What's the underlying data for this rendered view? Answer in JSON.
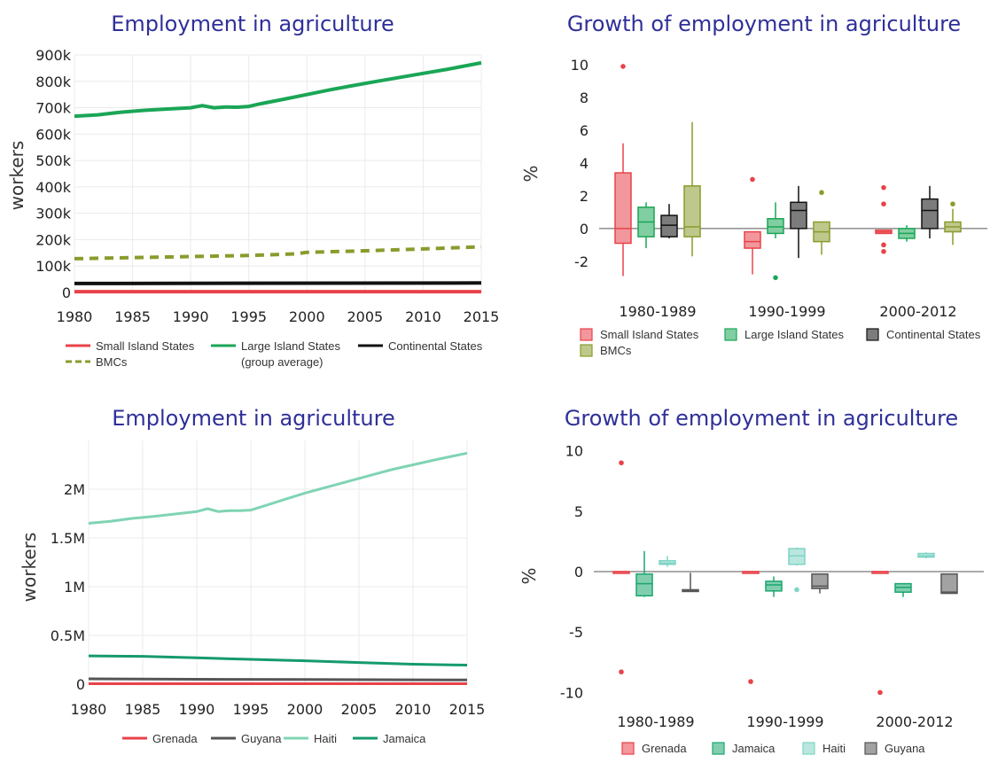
{
  "chart_data": [
    {
      "type": "line",
      "title": "Employment in agriculture",
      "ylabel": "workers",
      "xlim": [
        1980,
        2015
      ],
      "ylim": [
        0,
        900000
      ],
      "x_ticks": [
        "1980",
        "1985",
        "1990",
        "1995",
        "2000",
        "2005",
        "2010",
        "2015"
      ],
      "y_ticks": [
        "0",
        "100k",
        "200k",
        "300k",
        "400k",
        "500k",
        "600k",
        "700k",
        "800k",
        "900k"
      ],
      "grid": true,
      "legend_position": "bottom",
      "series": [
        {
          "name": "Small Island States",
          "color": "#e8424a",
          "dash": "solid",
          "x": [
            1980,
            2015
          ],
          "y": [
            3000,
            3000
          ]
        },
        {
          "name": "Large Island States\n(group average)",
          "color": "#1aa656",
          "dash": "solid",
          "x": [
            1980,
            1982,
            1984,
            1986,
            1988,
            1990,
            1991,
            1992,
            1993,
            1994,
            1995,
            1996,
            1998,
            2000,
            2002,
            2004,
            2006,
            2008,
            2010,
            2012,
            2015
          ],
          "y": [
            668000,
            673000,
            683000,
            690000,
            695000,
            700000,
            708000,
            700000,
            703000,
            702000,
            705000,
            715000,
            732000,
            750000,
            768000,
            784000,
            800000,
            815000,
            830000,
            845000,
            870000
          ]
        },
        {
          "name": "Continental States",
          "color": "#111111",
          "dash": "solid",
          "x": [
            1980,
            2015
          ],
          "y": [
            34000,
            36000
          ]
        },
        {
          "name": "BMCs",
          "color": "#8a9b2c",
          "dash": "dashed",
          "x": [
            1980,
            1985,
            1990,
            1995,
            1999,
            2000,
            2005,
            2010,
            2015
          ],
          "y": [
            128000,
            132000,
            136000,
            140000,
            146000,
            152000,
            158000,
            165000,
            173000
          ]
        }
      ]
    },
    {
      "type": "box",
      "title": "Growth of employment in agriculture",
      "ylabel": "%",
      "ylim": [
        -3.2,
        10.6
      ],
      "y_ticks": [
        "-2",
        "0",
        "2",
        "4",
        "6",
        "8",
        "10"
      ],
      "categories": [
        "1980-1989",
        "1990-1999",
        "2000-2012"
      ],
      "legend_position": "bottom",
      "series": [
        {
          "name": "Small Island States",
          "color": "#e8424a",
          "boxes": [
            {
              "min": -2.9,
              "q1": -0.9,
              "median": 0,
              "q3": 3.4,
              "max": 5.2,
              "outliers": [
                9.9
              ]
            },
            {
              "min": -2.8,
              "q1": -1.2,
              "median": -0.8,
              "q3": -0.2,
              "max": -0.2,
              "outliers": [
                3.0
              ]
            },
            {
              "min": -0.3,
              "q1": -0.3,
              "median": -0.2,
              "q3": -0.1,
              "max": -0.1,
              "outliers": [
                2.5,
                1.5,
                -1.0,
                -1.4
              ]
            }
          ]
        },
        {
          "name": "Large Island States",
          "color": "#1aa656",
          "boxes": [
            {
              "min": -1.2,
              "q1": -0.5,
              "median": 0.4,
              "q3": 1.3,
              "max": 1.6,
              "outliers": []
            },
            {
              "min": -0.6,
              "q1": -0.3,
              "median": 0.1,
              "q3": 0.6,
              "max": 1.6,
              "outliers": [
                -3.0
              ]
            },
            {
              "min": -0.8,
              "q1": -0.6,
              "median": -0.3,
              "q3": 0.0,
              "max": 0.2,
              "outliers": []
            }
          ]
        },
        {
          "name": "Continental States",
          "color": "#111111",
          "boxes": [
            {
              "min": -0.6,
              "q1": -0.5,
              "median": 0.2,
              "q3": 0.8,
              "max": 1.5,
              "outliers": []
            },
            {
              "min": -1.8,
              "q1": 0.0,
              "median": 1.1,
              "q3": 1.6,
              "max": 2.6,
              "outliers": []
            },
            {
              "min": -0.6,
              "q1": 0.0,
              "median": 1.1,
              "q3": 1.8,
              "max": 2.6,
              "outliers": []
            }
          ]
        },
        {
          "name": "BMCs",
          "color": "#8a9b2c",
          "boxes": [
            {
              "min": -1.7,
              "q1": -0.5,
              "median": 0.1,
              "q3": 2.6,
              "max": 6.5,
              "outliers": []
            },
            {
              "min": -1.6,
              "q1": -0.8,
              "median": -0.2,
              "q3": 0.4,
              "max": 0.4,
              "outliers": [
                2.2
              ]
            },
            {
              "min": -1.0,
              "q1": -0.2,
              "median": 0.1,
              "q3": 0.4,
              "max": 1.2,
              "outliers": [
                1.5
              ]
            }
          ]
        }
      ]
    },
    {
      "type": "line",
      "title": "Employment in agriculture",
      "ylabel": "workers",
      "xlim": [
        1980,
        2015
      ],
      "ylim": [
        0,
        2500000
      ],
      "x_ticks": [
        "1980",
        "1985",
        "1990",
        "1995",
        "2000",
        "2005",
        "2010",
        "2015"
      ],
      "y_ticks": [
        "0",
        "0.5M",
        "1M",
        "1.5M",
        "2M"
      ],
      "grid": true,
      "legend_position": "bottom",
      "series": [
        {
          "name": "Grenada",
          "color": "#e8424a",
          "dash": "solid",
          "x": [
            1980,
            2015
          ],
          "y": [
            5000,
            5000
          ]
        },
        {
          "name": "Guyana",
          "color": "#555555",
          "dash": "solid",
          "x": [
            1980,
            1990,
            2000,
            2015
          ],
          "y": [
            55000,
            50000,
            47000,
            43000
          ]
        },
        {
          "name": "Haiti",
          "color": "#7fd4b4",
          "dash": "solid",
          "x": [
            1980,
            1982,
            1984,
            1986,
            1988,
            1990,
            1991,
            1992,
            1993,
            1994,
            1995,
            1996,
            1998,
            2000,
            2002,
            2004,
            2006,
            2008,
            2010,
            2012,
            2015
          ],
          "y": [
            1650000,
            1670000,
            1700000,
            1720000,
            1745000,
            1770000,
            1800000,
            1770000,
            1780000,
            1780000,
            1785000,
            1820000,
            1890000,
            1960000,
            2020000,
            2080000,
            2140000,
            2200000,
            2250000,
            2300000,
            2370000
          ]
        },
        {
          "name": "Jamaica",
          "color": "#159a6e",
          "dash": "solid",
          "x": [
            1980,
            1985,
            1990,
            1995,
            2000,
            2005,
            2010,
            2015
          ],
          "y": [
            290000,
            285000,
            270000,
            255000,
            240000,
            222000,
            205000,
            195000
          ]
        }
      ]
    },
    {
      "type": "box",
      "title": "Growth of employment in agriculture",
      "ylabel": "%",
      "ylim": [
        -11,
        11
      ],
      "y_ticks": [
        "-10",
        "-5",
        "0",
        "5",
        "10"
      ],
      "categories": [
        "1980-1989",
        "1990-1999",
        "2000-2012"
      ],
      "legend_position": "bottom",
      "series": [
        {
          "name": "Grenada",
          "color": "#e8424a",
          "boxes": [
            {
              "min": 0,
              "q1": 0,
              "median": 0,
              "q3": 0,
              "max": 0,
              "outliers": [
                9.0,
                -8.3
              ]
            },
            {
              "min": 0,
              "q1": 0,
              "median": 0,
              "q3": 0,
              "max": 0,
              "outliers": [
                -9.1
              ]
            },
            {
              "min": 0,
              "q1": 0,
              "median": 0,
              "q3": 0,
              "max": 0,
              "outliers": [
                -10.0
              ]
            }
          ]
        },
        {
          "name": "Jamaica",
          "color": "#1aa66e",
          "boxes": [
            {
              "min": -2.1,
              "q1": -2.0,
              "median": -1.0,
              "q3": -0.2,
              "max": 1.7,
              "outliers": []
            },
            {
              "min": -2.1,
              "q1": -1.6,
              "median": -1.1,
              "q3": -0.8,
              "max": -0.4,
              "outliers": []
            },
            {
              "min": -2.1,
              "q1": -1.7,
              "median": -1.3,
              "q3": -1.0,
              "max": -1.0,
              "outliers": []
            }
          ]
        },
        {
          "name": "Haiti",
          "color": "#7fd4c4",
          "boxes": [
            {
              "min": 0.4,
              "q1": 0.6,
              "median": 0.7,
              "q3": 0.9,
              "max": 1.3,
              "outliers": []
            },
            {
              "min": 0.5,
              "q1": 0.6,
              "median": 1.3,
              "q3": 1.9,
              "max": 2.0,
              "outliers": [
                -1.5
              ]
            },
            {
              "min": 1.1,
              "q1": 1.2,
              "median": 1.3,
              "q3": 1.5,
              "max": 1.6,
              "outliers": []
            }
          ]
        },
        {
          "name": "Guyana",
          "color": "#555555",
          "boxes": [
            {
              "min": -1.6,
              "q1": -1.6,
              "median": -1.6,
              "q3": -1.5,
              "max": -0.1,
              "outliers": []
            },
            {
              "min": -1.8,
              "q1": -1.4,
              "median": -1.2,
              "q3": -0.2,
              "max": -0.2,
              "outliers": []
            },
            {
              "min": -1.8,
              "q1": -1.8,
              "median": -1.7,
              "q3": -0.2,
              "max": -0.2,
              "outliers": []
            }
          ]
        }
      ]
    }
  ]
}
